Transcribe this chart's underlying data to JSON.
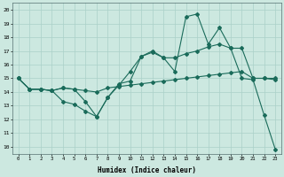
{
  "xlabel": "Humidex (Indice chaleur)",
  "bg_color": "#cce8e0",
  "grid_color": "#aad0c8",
  "line_color": "#1a6b5a",
  "xlim": [
    -0.5,
    23.5
  ],
  "ylim": [
    9.5,
    20.5
  ],
  "xticks": [
    0,
    1,
    2,
    3,
    4,
    5,
    6,
    7,
    8,
    9,
    10,
    11,
    12,
    13,
    14,
    15,
    16,
    17,
    18,
    19,
    20,
    21,
    22,
    23
  ],
  "yticks": [
    10,
    11,
    12,
    13,
    14,
    15,
    16,
    17,
    18,
    19,
    20
  ],
  "line1_x": [
    0,
    1,
    2,
    3,
    4,
    5,
    6,
    7,
    8,
    9,
    10,
    11,
    12,
    13,
    14,
    15,
    16,
    17,
    18,
    19,
    20,
    21,
    22,
    23
  ],
  "line1_y": [
    15,
    14.2,
    14.2,
    14.1,
    13.3,
    13.1,
    12.6,
    12.2,
    13.6,
    14.5,
    15.5,
    16.6,
    16.9,
    16.5,
    16.5,
    16.8,
    17.0,
    17.3,
    17.5,
    17.2,
    17.2,
    15.0,
    15.0,
    15.0
  ],
  "line2_x": [
    0,
    1,
    2,
    3,
    4,
    5,
    6,
    7,
    8,
    9,
    10,
    11,
    12,
    13,
    14,
    15,
    16,
    17,
    18,
    19,
    20,
    21,
    22,
    23
  ],
  "line2_y": [
    15,
    14.2,
    14.2,
    14.1,
    14.3,
    14.2,
    13.3,
    12.2,
    13.6,
    14.6,
    14.8,
    16.6,
    17.0,
    16.5,
    15.5,
    19.5,
    19.7,
    17.5,
    18.7,
    17.2,
    15.0,
    14.9,
    12.3,
    9.8
  ],
  "line3_x": [
    0,
    1,
    2,
    3,
    4,
    5,
    6,
    7,
    8,
    9,
    10,
    11,
    12,
    13,
    14,
    15,
    16,
    17,
    18,
    19,
    20,
    21,
    22,
    23
  ],
  "line3_y": [
    15,
    14.2,
    14.2,
    14.1,
    14.3,
    14.2,
    14.1,
    14.0,
    14.3,
    14.4,
    14.5,
    14.6,
    14.7,
    14.8,
    14.9,
    15.0,
    15.1,
    15.2,
    15.3,
    15.4,
    15.5,
    15.0,
    15.0,
    14.9
  ]
}
